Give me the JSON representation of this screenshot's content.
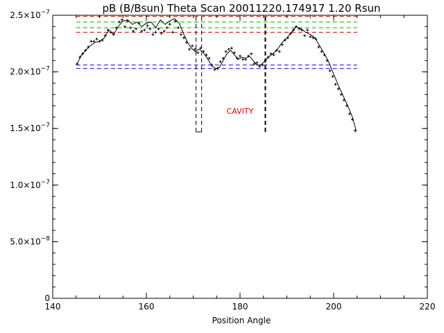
{
  "chart_data": {
    "type": "scatter",
    "title": "pB (B/Bsun) Theta Scan 20011220.174917 1.20 Rsun",
    "xlabel": "Position Angle",
    "ylabel": "",
    "xlim": [
      140,
      220
    ],
    "ylim": [
      0,
      2.5e-07
    ],
    "x_ticks": [
      {
        "value": 140,
        "label": "140"
      },
      {
        "value": 160,
        "label": "160"
      },
      {
        "value": 180,
        "label": "180"
      },
      {
        "value": 200,
        "label": "200"
      },
      {
        "value": 220,
        "label": "220"
      }
    ],
    "y_ticks": [
      {
        "value": 0,
        "label": "0",
        "exp": ""
      },
      {
        "value": 5e-08,
        "label": "5.0×10",
        "exp": "−8"
      },
      {
        "value": 1e-07,
        "label": "1.0×10",
        "exp": "−7"
      },
      {
        "value": 1.5e-07,
        "label": "1.5×10",
        "exp": "−7"
      },
      {
        "value": 2e-07,
        "label": "2.0×10",
        "exp": "−7"
      },
      {
        "value": 2.5e-07,
        "label": "2.5×10",
        "exp": "−7"
      }
    ],
    "annotation": {
      "text": "CAVITY",
      "x": 180,
      "y": 1.63e-07,
      "color": "#e00000"
    },
    "reference_lines": [
      {
        "y": 2.35e-07,
        "x_range": [
          145,
          205
        ],
        "color": "#e00000"
      },
      {
        "y": 2.49e-07,
        "x_range": [
          145,
          205
        ],
        "color": "#e00000"
      },
      {
        "y": 2.39e-07,
        "x_range": [
          145,
          205
        ],
        "color": "#00b000"
      },
      {
        "y": 2.44e-07,
        "x_range": [
          145,
          205
        ],
        "color": "#00b000"
      },
      {
        "y": 2.03e-07,
        "x_range": [
          145,
          205
        ],
        "color": "#0000e0"
      },
      {
        "y": 2.06e-07,
        "x_range": [
          145,
          205
        ],
        "color": "#0000e0"
      }
    ],
    "vertical_markers": [
      {
        "x": 170.6,
        "y_range": [
          1.47e-07,
          2.49e-07
        ],
        "color": "#000000"
      },
      {
        "x": 171.8,
        "y_range": [
          1.47e-07,
          2.49e-07
        ],
        "color": "#000000"
      },
      {
        "x": 185.4,
        "y_range": [
          1.47e-07,
          2.49e-07
        ],
        "color": "#000000"
      }
    ],
    "series": [
      {
        "type": "scatter",
        "x": [
          145.2,
          145.8,
          146.4,
          147.0,
          147.6,
          148.2,
          148.8,
          149.4,
          150.0,
          150.6,
          151.2,
          151.8,
          152.4,
          153.0,
          153.6,
          154.2,
          154.8,
          155.4,
          156.0,
          156.6,
          157.2,
          157.8,
          158.4,
          159.0,
          159.6,
          160.2,
          160.8,
          161.4,
          162.0,
          162.6,
          163.2,
          163.8,
          164.4,
          165.0,
          165.6,
          166.2,
          166.8,
          167.4,
          168.0,
          168.6,
          169.2,
          169.8,
          170.4,
          171.0,
          171.6,
          172.2,
          172.8,
          173.4,
          174.0,
          174.6,
          175.2,
          175.8,
          176.4,
          177.0,
          177.6,
          178.2,
          178.8,
          179.4,
          180.0,
          180.6,
          181.2,
          181.8,
          182.4,
          183.0,
          183.6,
          184.2,
          184.8,
          185.4,
          186.0,
          186.6,
          187.2,
          187.8,
          188.4,
          189.0,
          189.6,
          190.2,
          190.8,
          191.4,
          192.0,
          192.6,
          193.2,
          193.8,
          194.4,
          195.0,
          195.6,
          196.2,
          196.8,
          197.4,
          198.0,
          198.6,
          199.2,
          199.8,
          200.4,
          201.0,
          201.6,
          202.2,
          202.8,
          203.4,
          204.0,
          204.6
        ],
        "values": [
          2.07e-07,
          2.13e-07,
          2.16e-07,
          2.19e-07,
          2.22e-07,
          2.27e-07,
          2.27e-07,
          2.29e-07,
          2.27e-07,
          2.28e-07,
          2.32e-07,
          2.37e-07,
          2.35e-07,
          2.33e-07,
          2.39e-07,
          2.44e-07,
          2.46e-07,
          2.4e-07,
          2.45e-07,
          2.39e-07,
          2.36e-07,
          2.38e-07,
          2.43e-07,
          2.36e-07,
          2.37e-07,
          2.41e-07,
          2.38e-07,
          2.33e-07,
          2.35e-07,
          2.38e-07,
          2.34e-07,
          2.36e-07,
          2.39e-07,
          2.42e-07,
          2.35e-07,
          2.45e-07,
          2.39e-07,
          2.33e-07,
          2.3e-07,
          2.26e-07,
          2.2e-07,
          2.23e-07,
          2.2e-07,
          2.17e-07,
          2.21e-07,
          2.18e-07,
          2.15e-07,
          2.12e-07,
          2.06e-07,
          2.02e-07,
          2.03e-07,
          2.09e-07,
          2.12e-07,
          2.18e-07,
          2.2e-07,
          2.21e-07,
          2.17e-07,
          2.12e-07,
          2.14e-07,
          2.11e-07,
          2.11e-07,
          2.14e-07,
          2.16e-07,
          2.07e-07,
          2.08e-07,
          2.05e-07,
          2.06e-07,
          2.1e-07,
          2.13e-07,
          2.16e-07,
          2.15e-07,
          2.19e-07,
          2.18e-07,
          2.24e-07,
          2.28e-07,
          2.3e-07,
          2.34e-07,
          2.37e-07,
          2.4e-07,
          2.38e-07,
          2.37e-07,
          2.32e-07,
          2.37e-07,
          2.31e-07,
          2.3e-07,
          2.29e-07,
          2.22e-07,
          2.18e-07,
          2.15e-07,
          2.1e-07,
          2.01e-07,
          1.96e-07,
          1.89e-07,
          1.85e-07,
          1.8e-07,
          1.75e-07,
          1.7e-07,
          1.63e-07,
          1.58e-07,
          1.48e-07
        ]
      },
      {
        "type": "line",
        "x": [
          145.2,
          146.0,
          147.0,
          148.0,
          149.0,
          150.0,
          151.0,
          152.0,
          153.0,
          154.0,
          155.0,
          156.0,
          157.0,
          158.0,
          159.0,
          160.0,
          161.0,
          162.0,
          163.0,
          164.0,
          165.0,
          166.0,
          167.0,
          168.0,
          168.8,
          169.6,
          170.4,
          171.2,
          172.0,
          173.0,
          174.0,
          174.8,
          175.6,
          176.4,
          177.2,
          178.0,
          178.8,
          179.6,
          180.4,
          181.2,
          182.0,
          182.8,
          183.6,
          184.4,
          185.2,
          186.0,
          187.0,
          188.0,
          189.0,
          190.0,
          191.0,
          192.0,
          193.0,
          194.0,
          195.0,
          196.0,
          197.0,
          198.0,
          199.0,
          200.0,
          201.0,
          202.0,
          203.0,
          204.0,
          204.8
        ],
        "values": [
          2.07e-07,
          2.14e-07,
          2.19e-07,
          2.23e-07,
          2.26e-07,
          2.27e-07,
          2.3e-07,
          2.37e-07,
          2.33e-07,
          2.4e-07,
          2.45e-07,
          2.46e-07,
          2.42e-07,
          2.44e-07,
          2.4e-07,
          2.43e-07,
          2.44e-07,
          2.39e-07,
          2.46e-07,
          2.42e-07,
          2.45e-07,
          2.47e-07,
          2.43e-07,
          2.33e-07,
          2.26e-07,
          2.21e-07,
          2.18e-07,
          2.2e-07,
          2.18e-07,
          2.12e-07,
          2.05e-07,
          2.03e-07,
          2.04e-07,
          2.1e-07,
          2.16e-07,
          2.19e-07,
          2.15e-07,
          2.11e-07,
          2.13e-07,
          2.12e-07,
          2.14e-07,
          2.1e-07,
          2.06e-07,
          2.06e-07,
          2.09e-07,
          2.13e-07,
          2.16e-07,
          2.2e-07,
          2.26e-07,
          2.3e-07,
          2.35e-07,
          2.4e-07,
          2.38e-07,
          2.35e-07,
          2.33e-07,
          2.3e-07,
          2.23e-07,
          2.16e-07,
          2.08e-07,
          1.98e-07,
          1.88e-07,
          1.79e-07,
          1.7e-07,
          1.6e-07,
          1.48e-07
        ]
      }
    ]
  }
}
